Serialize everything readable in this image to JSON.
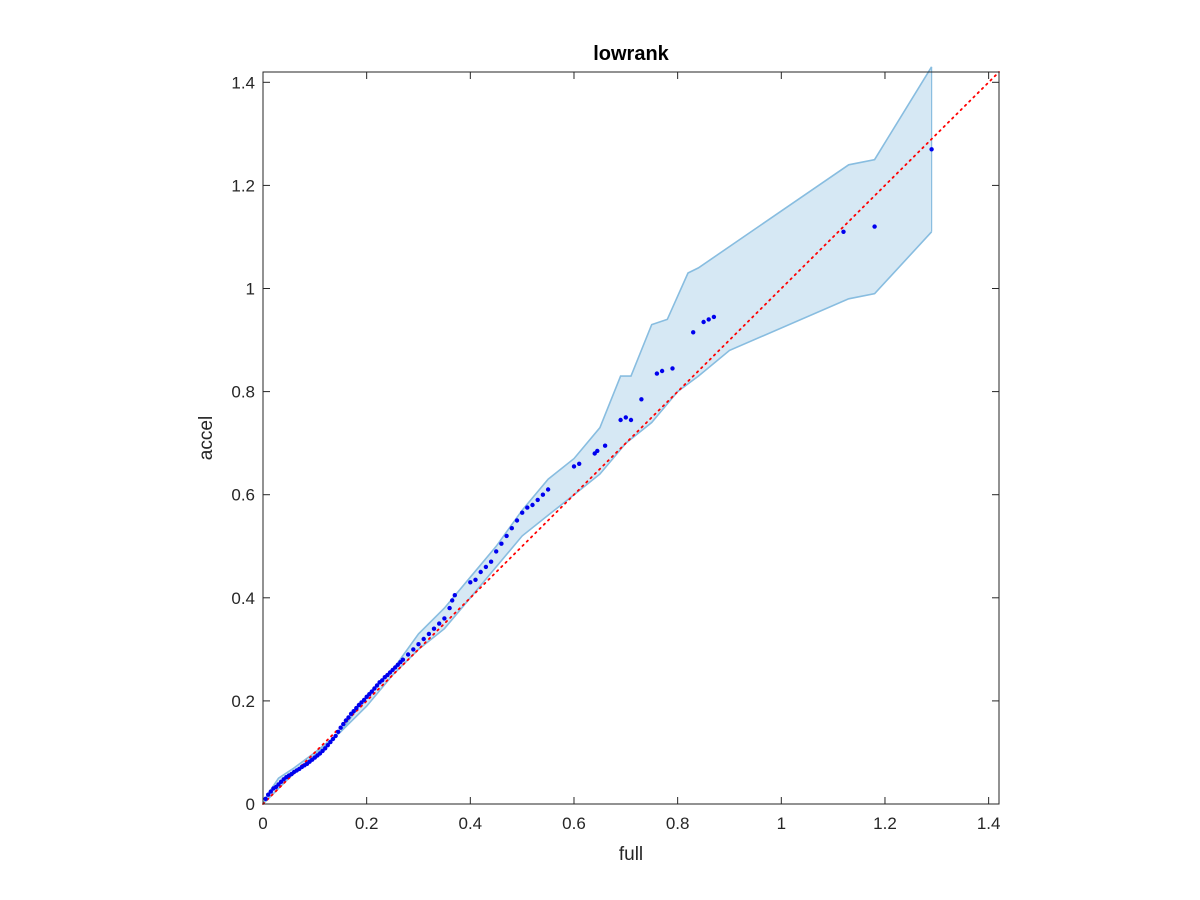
{
  "chart_data": {
    "type": "scatter",
    "title": "lowrank",
    "xlabel": "full",
    "ylabel": "accel",
    "xlim": [
      0,
      1.42
    ],
    "ylim": [
      0,
      1.42
    ],
    "xticks": [
      0,
      0.2,
      0.4,
      0.6,
      0.8,
      1,
      1.2,
      1.4
    ],
    "yticks": [
      0,
      0.2,
      0.4,
      0.6,
      0.8,
      1,
      1.2,
      1.4
    ],
    "xtick_labels": [
      "0",
      "0.2",
      "0.4",
      "0.6",
      "0.8",
      "1",
      "1.2",
      "1.4"
    ],
    "ytick_labels": [
      "0",
      "0.2",
      "0.4",
      "0.6",
      "0.8",
      "1",
      "1.2",
      "1.4"
    ],
    "grid": false,
    "box": true,
    "colors": {
      "points": "#0000ee",
      "reference_line": "#ff0000",
      "band_fill": "#d6e8f4",
      "band_edge": "#88bde0",
      "axes": "#262626"
    },
    "reference_line": {
      "style": "dotted",
      "from": [
        0,
        0
      ],
      "to": [
        1.42,
        1.42
      ]
    },
    "band": {
      "upper": [
        [
          0,
          0
        ],
        [
          0.01,
          0.02
        ],
        [
          0.03,
          0.05
        ],
        [
          0.06,
          0.07
        ],
        [
          0.1,
          0.1
        ],
        [
          0.15,
          0.14
        ],
        [
          0.2,
          0.21
        ],
        [
          0.25,
          0.26
        ],
        [
          0.3,
          0.33
        ],
        [
          0.35,
          0.38
        ],
        [
          0.4,
          0.44
        ],
        [
          0.45,
          0.5
        ],
        [
          0.5,
          0.57
        ],
        [
          0.55,
          0.63
        ],
        [
          0.6,
          0.67
        ],
        [
          0.65,
          0.73
        ],
        [
          0.69,
          0.83
        ],
        [
          0.71,
          0.83
        ],
        [
          0.75,
          0.93
        ],
        [
          0.78,
          0.94
        ],
        [
          0.82,
          1.03
        ],
        [
          0.84,
          1.04
        ],
        [
          1.13,
          1.24
        ],
        [
          1.18,
          1.25
        ],
        [
          1.29,
          1.43
        ]
      ],
      "lower": [
        [
          1.29,
          1.11
        ],
        [
          1.18,
          0.99
        ],
        [
          1.13,
          0.98
        ],
        [
          0.9,
          0.88
        ],
        [
          0.84,
          0.83
        ],
        [
          0.8,
          0.8
        ],
        [
          0.75,
          0.74
        ],
        [
          0.7,
          0.7
        ],
        [
          0.65,
          0.64
        ],
        [
          0.6,
          0.6
        ],
        [
          0.55,
          0.56
        ],
        [
          0.5,
          0.52
        ],
        [
          0.45,
          0.46
        ],
        [
          0.4,
          0.4
        ],
        [
          0.35,
          0.34
        ],
        [
          0.3,
          0.3
        ],
        [
          0.25,
          0.25
        ],
        [
          0.2,
          0.19
        ],
        [
          0.15,
          0.14
        ],
        [
          0.1,
          0.095
        ],
        [
          0.05,
          0.05
        ],
        [
          0.02,
          0.02
        ],
        [
          0,
          0
        ]
      ]
    },
    "points": {
      "x": [
        0.005,
        0.01,
        0.015,
        0.02,
        0.025,
        0.03,
        0.035,
        0.04,
        0.045,
        0.05,
        0.055,
        0.06,
        0.065,
        0.07,
        0.075,
        0.08,
        0.085,
        0.09,
        0.095,
        0.1,
        0.105,
        0.11,
        0.115,
        0.12,
        0.125,
        0.13,
        0.135,
        0.14,
        0.145,
        0.15,
        0.155,
        0.16,
        0.165,
        0.17,
        0.175,
        0.18,
        0.185,
        0.19,
        0.195,
        0.2,
        0.205,
        0.21,
        0.215,
        0.22,
        0.225,
        0.23,
        0.235,
        0.24,
        0.245,
        0.25,
        0.255,
        0.26,
        0.265,
        0.27,
        0.28,
        0.29,
        0.3,
        0.31,
        0.32,
        0.33,
        0.34,
        0.35,
        0.36,
        0.365,
        0.37,
        0.4,
        0.41,
        0.42,
        0.43,
        0.44,
        0.45,
        0.46,
        0.47,
        0.48,
        0.49,
        0.5,
        0.51,
        0.52,
        0.53,
        0.54,
        0.55,
        0.6,
        0.61,
        0.64,
        0.645,
        0.66,
        0.69,
        0.7,
        0.71,
        0.73,
        0.76,
        0.77,
        0.79,
        0.83,
        0.85,
        0.86,
        0.87,
        1.12,
        1.18,
        1.29
      ],
      "y": [
        0.01,
        0.018,
        0.024,
        0.03,
        0.033,
        0.038,
        0.043,
        0.048,
        0.052,
        0.055,
        0.058,
        0.062,
        0.065,
        0.068,
        0.072,
        0.075,
        0.078,
        0.082,
        0.086,
        0.09,
        0.094,
        0.098,
        0.103,
        0.108,
        0.114,
        0.12,
        0.126,
        0.132,
        0.14,
        0.148,
        0.155,
        0.162,
        0.168,
        0.175,
        0.18,
        0.186,
        0.192,
        0.197,
        0.202,
        0.208,
        0.213,
        0.218,
        0.224,
        0.23,
        0.236,
        0.24,
        0.246,
        0.25,
        0.255,
        0.26,
        0.265,
        0.27,
        0.275,
        0.28,
        0.29,
        0.3,
        0.31,
        0.32,
        0.33,
        0.34,
        0.35,
        0.36,
        0.38,
        0.395,
        0.405,
        0.43,
        0.435,
        0.45,
        0.46,
        0.47,
        0.49,
        0.505,
        0.52,
        0.535,
        0.55,
        0.565,
        0.575,
        0.58,
        0.59,
        0.6,
        0.61,
        0.655,
        0.66,
        0.68,
        0.685,
        0.695,
        0.745,
        0.75,
        0.745,
        0.785,
        0.835,
        0.84,
        0.845,
        0.915,
        0.935,
        0.94,
        0.945,
        1.11,
        1.12,
        1.27
      ]
    }
  }
}
